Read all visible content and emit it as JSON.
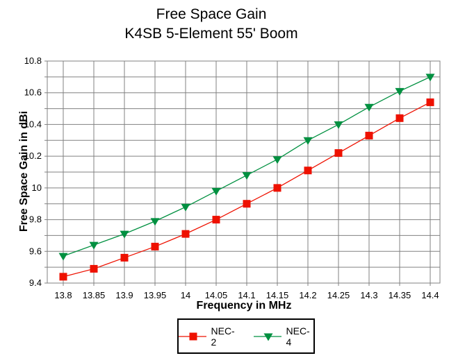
{
  "title": {
    "line1": "Free Space Gain",
    "line2": "K4SB 5-Element 55' Boom"
  },
  "chart_data": {
    "type": "line",
    "title": "Free Space Gain — K4SB 5-Element 55' Boom",
    "xlabel": "Frequency in MHz",
    "ylabel": "Free Space Gain in dBi",
    "x_labels": [
      "13.8",
      "13.85",
      "13.9",
      "13.95",
      "14",
      "14.05",
      "14.1",
      "14.15",
      "14.2",
      "14.25",
      "14.3",
      "14.35",
      "14.4"
    ],
    "x_values": [
      13.8,
      13.85,
      13.9,
      13.95,
      14,
      14.05,
      14.1,
      14.15,
      14.2,
      14.25,
      14.3,
      14.35,
      14.4
    ],
    "ylim": [
      9.4,
      10.8
    ],
    "y_grid_step": 0.1,
    "y_label_step": 0.2,
    "y_tick_labels": [
      "9.4",
      "9.6",
      "9.8",
      "10",
      "10.2",
      "10.4",
      "10.6",
      "10.8"
    ],
    "grid": true,
    "legend_position": "bottom",
    "series": [
      {
        "name": "NEC-2",
        "marker": "square",
        "color": "#ee1100",
        "values": [
          9.44,
          9.49,
          9.56,
          9.63,
          9.71,
          9.8,
          9.9,
          10.0,
          10.11,
          10.22,
          10.33,
          10.44,
          10.54
        ]
      },
      {
        "name": "NEC-4",
        "marker": "triangle-down",
        "color": "#009040",
        "values": [
          9.57,
          9.64,
          9.71,
          9.79,
          9.88,
          9.98,
          10.08,
          10.18,
          10.3,
          10.4,
          10.51,
          10.61,
          10.7
        ]
      }
    ],
    "colors": {
      "grid": "#808080",
      "background": "#ffffff",
      "text": "#000000"
    }
  }
}
